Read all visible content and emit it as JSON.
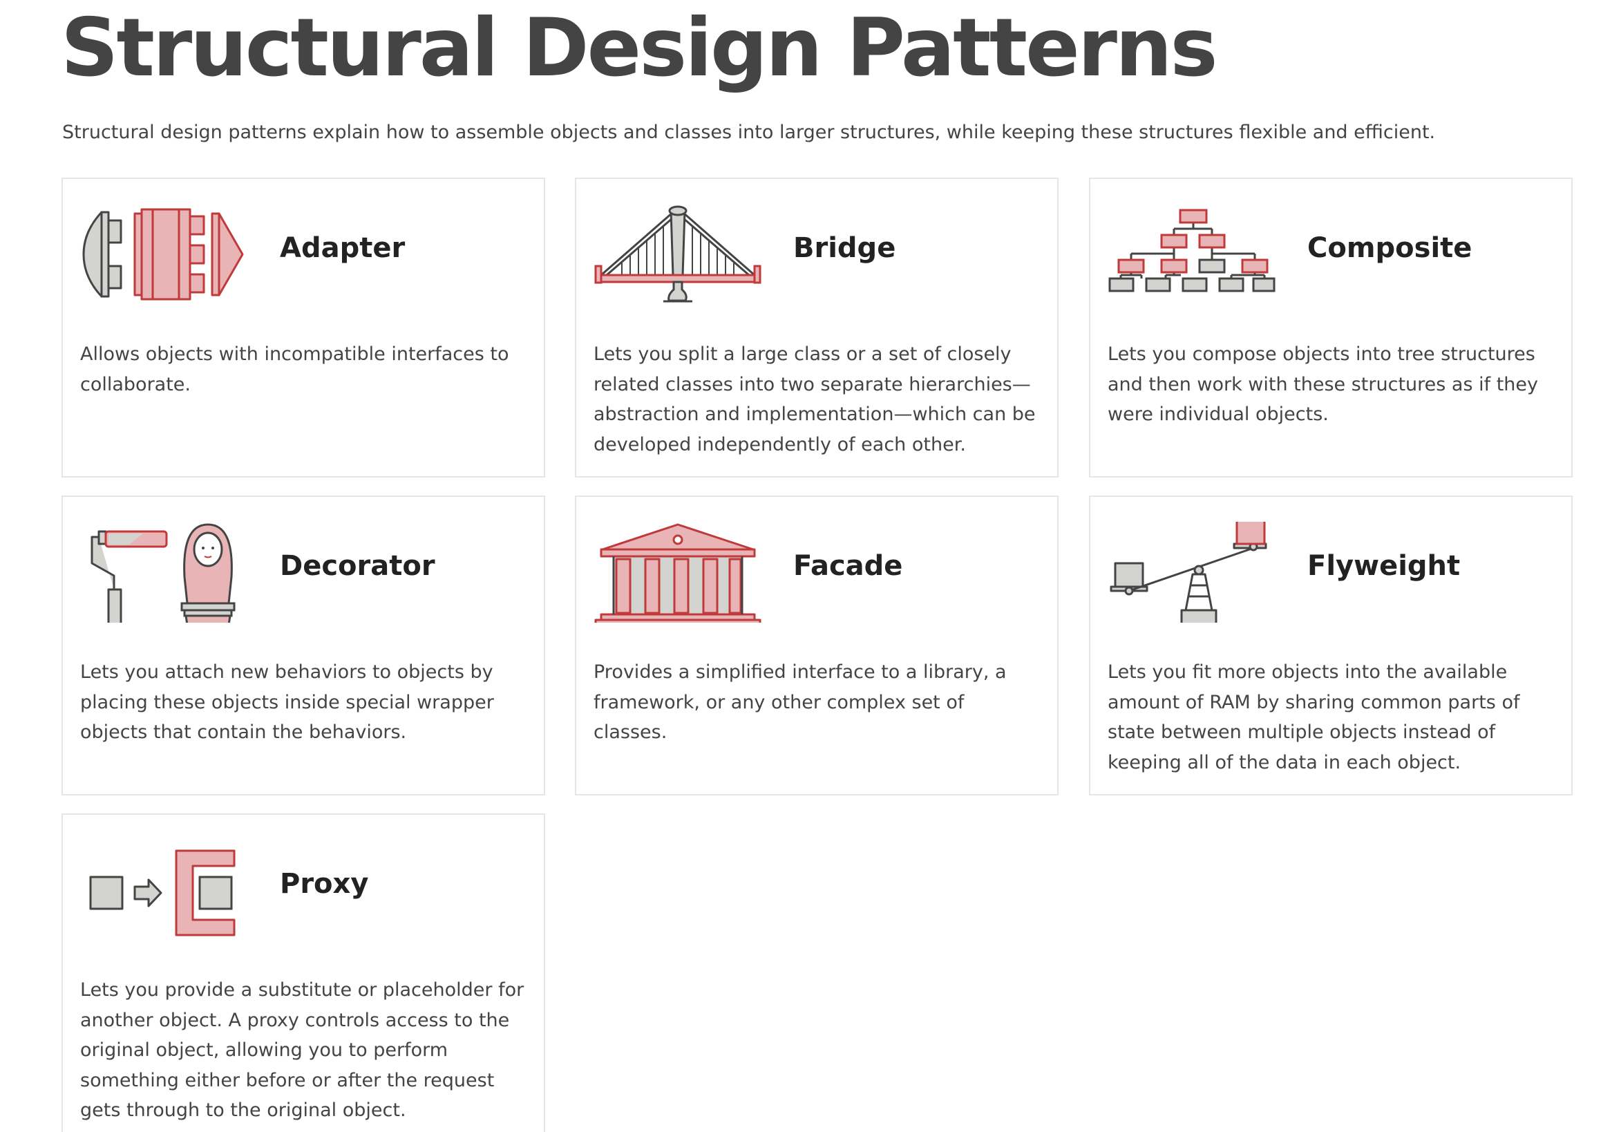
{
  "page": {
    "title": "Structural Design Patterns",
    "intro": "Structural design patterns explain how to assemble objects and classes into larger structures, while keeping these structures flexible and efficient."
  },
  "colors": {
    "accent_red": "#c0393b",
    "accent_pink": "#e8b4b5",
    "neutral_gray": "#d3d3cf",
    "outline": "#444444",
    "card_border": "#e6e6e6"
  },
  "patterns": [
    {
      "name": "Adapter",
      "icon": "adapter-icon",
      "description": "Allows objects with incompatible interfaces to collaborate."
    },
    {
      "name": "Bridge",
      "icon": "bridge-icon",
      "description": "Lets you split a large class or a set of closely related classes into two separate hierarchies—abstraction and implementation—which can be developed independently of each other."
    },
    {
      "name": "Composite",
      "icon": "composite-icon",
      "description": "Lets you compose objects into tree structures and then work with these structures as if they were individual objects."
    },
    {
      "name": "Decorator",
      "icon": "decorator-icon",
      "description": "Lets you attach new behaviors to objects by placing these objects inside special wrapper objects that contain the behaviors."
    },
    {
      "name": "Facade",
      "icon": "facade-icon",
      "description": "Provides a simplified interface to a library, a framework, or any other complex set of classes."
    },
    {
      "name": "Flyweight",
      "icon": "flyweight-icon",
      "description": "Lets you fit more objects into the available amount of RAM by sharing common parts of state between multiple objects instead of keeping all of the data in each object."
    },
    {
      "name": "Proxy",
      "icon": "proxy-icon",
      "description": "Lets you provide a substitute or placeholder for another object. A proxy controls access to the original object, allowing you to perform something either before or after the request gets through to the original object."
    }
  ]
}
